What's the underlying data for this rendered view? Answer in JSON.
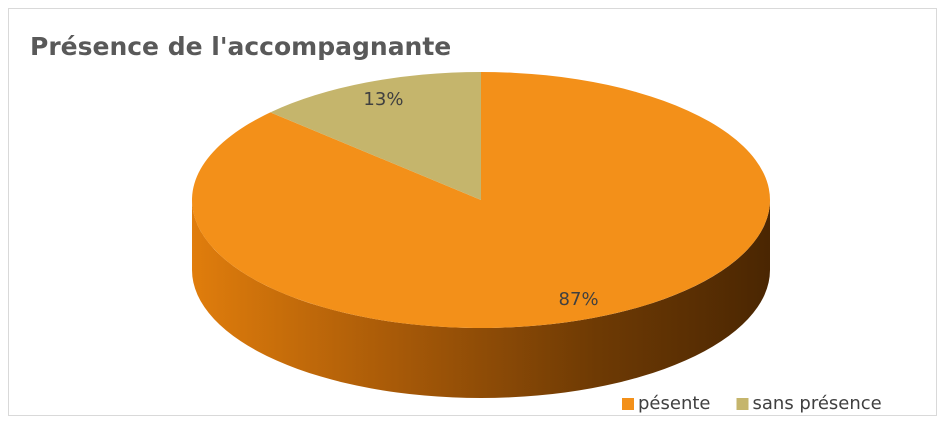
{
  "chart_data": {
    "type": "pie",
    "title": "Présence de l'accompagnante",
    "categories": [
      "pésente",
      "sans présence"
    ],
    "values": [
      87,
      13
    ],
    "value_labels": [
      "87%",
      "13%"
    ],
    "colors": [
      "#f39019",
      "#c5b56c"
    ],
    "legend": "bottom-right"
  }
}
